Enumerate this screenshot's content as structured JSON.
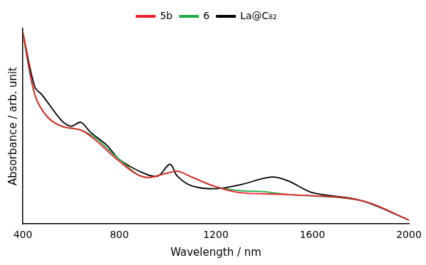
{
  "chart_data": {
    "type": "line",
    "x_label": "Wavelength / nm",
    "y_label": "Absorbance / arb. unit",
    "xlim": [
      400,
      2000
    ],
    "xticks": [
      400,
      800,
      1200,
      1600,
      2000
    ],
    "ylim": [
      0,
      1
    ],
    "tick_labels": "x",
    "grid": false,
    "legend": "top",
    "series": [
      {
        "name": "5b",
        "color": "#e8202a",
        "line_style": "solid",
        "x": [
          400,
          450,
          500,
          560,
          640,
          700,
          800,
          900,
          1000,
          1040,
          1100,
          1200,
          1300,
          1500,
          1800,
          2000
        ],
        "values": [
          0.98,
          0.66,
          0.55,
          0.5,
          0.48,
          0.43,
          0.32,
          0.24,
          0.26,
          0.27,
          0.24,
          0.19,
          0.16,
          0.15,
          0.12,
          0.02
        ]
      },
      {
        "name": "6",
        "color": "#1fab48",
        "line_style": "solid",
        "x": [
          400,
          450,
          500,
          560,
          640,
          700,
          800,
          900,
          1000,
          1040,
          1100,
          1200,
          1300,
          1400,
          1500,
          1800,
          2000
        ],
        "values": [
          0.98,
          0.66,
          0.55,
          0.5,
          0.48,
          0.44,
          0.33,
          0.24,
          0.26,
          0.27,
          0.24,
          0.19,
          0.17,
          0.165,
          0.15,
          0.12,
          0.02
        ]
      },
      {
        "name": "La@C₈₂",
        "color": "#000000",
        "line_style": "solid",
        "x": [
          400,
          450,
          480,
          560,
          600,
          640,
          680,
          750,
          800,
          900,
          960,
          1010,
          1040,
          1100,
          1200,
          1300,
          1430,
          1500,
          1600,
          1800,
          2000
        ],
        "values": [
          0.98,
          0.7,
          0.66,
          0.53,
          0.5,
          0.52,
          0.47,
          0.4,
          0.33,
          0.26,
          0.245,
          0.305,
          0.245,
          0.195,
          0.18,
          0.2,
          0.24,
          0.22,
          0.16,
          0.12,
          0.02
        ]
      }
    ]
  }
}
